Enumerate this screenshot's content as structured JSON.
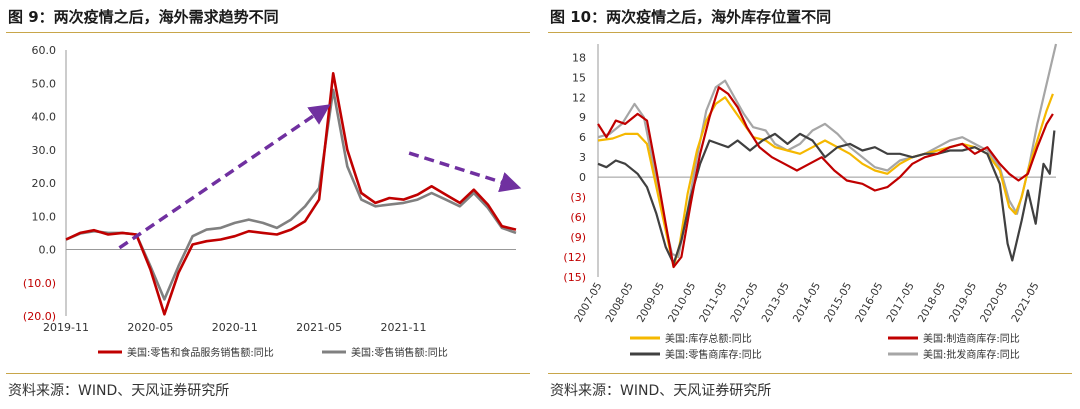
{
  "left": {
    "title": "图 9：两次疫情之后，海外需求趋势不同",
    "source": "资料来源：WIND、天风证券研究所"
  },
  "right": {
    "title": "图 10：两次疫情之后，海外库存位置不同",
    "source": "资料来源：WIND、天风证券研究所"
  },
  "chart_data": [
    {
      "type": "line",
      "title": "图 9：两次疫情之后，海外需求趋势不同",
      "xlabel": "",
      "ylabel": "",
      "x_ticks": [
        "2019-11",
        "2020-05",
        "2020-11",
        "2021-05",
        "2021-11"
      ],
      "x_tick_indices": [
        0,
        6,
        12,
        18,
        24
      ],
      "y_ticks": [
        -20,
        -10,
        0,
        10,
        20,
        30,
        40,
        50,
        60
      ],
      "y_tick_labels": [
        "(20.0)",
        "(10.0)",
        "0.0",
        "10.0",
        "20.0",
        "30.0",
        "40.0",
        "50.0",
        "60.0"
      ],
      "ylim": [
        -20,
        60
      ],
      "x_count": 33,
      "series": [
        {
          "name": "美国:零售和食品服务销售额:同比",
          "color": "#c00000",
          "values": [
            3.0,
            5.0,
            5.8,
            4.5,
            5.0,
            4.5,
            -6.0,
            -19.5,
            -7.0,
            1.5,
            2.5,
            3.0,
            4.0,
            5.5,
            5.0,
            4.5,
            6.0,
            8.5,
            15.0,
            53.0,
            30.0,
            17.0,
            14.0,
            15.5,
            15.0,
            16.5,
            19.0,
            16.5,
            14.0,
            18.0,
            13.5,
            7.0,
            6.0
          ]
        },
        {
          "name": "美国:零售销售额:同比",
          "color": "#808080",
          "values": [
            3.0,
            4.8,
            5.5,
            5.0,
            5.0,
            4.5,
            -5.0,
            -15.0,
            -5.0,
            4.0,
            6.0,
            6.5,
            8.0,
            9.0,
            8.0,
            6.5,
            9.0,
            13.0,
            18.5,
            48.0,
            25.0,
            15.0,
            13.0,
            13.5,
            14.0,
            15.0,
            17.0,
            15.0,
            13.0,
            17.0,
            12.5,
            6.5,
            5.0
          ]
        }
      ],
      "arrows": [
        {
          "from_x": 3.8,
          "from_y": 0.5,
          "to_x": 18.4,
          "to_y": 42.5,
          "color": "#7030a0"
        },
        {
          "from_x": 24.4,
          "from_y": 29.0,
          "to_x": 31.9,
          "to_y": 19.0,
          "color": "#7030a0"
        }
      ]
    },
    {
      "type": "line",
      "title": "图 10：两次疫情之后，海外库存位置不同",
      "xlabel": "",
      "ylabel": "",
      "x_ticks": [
        "2007-05",
        "2008-05",
        "2009-05",
        "2010-05",
        "2011-05",
        "2012-05",
        "2013-05",
        "2014-05",
        "2015-05",
        "2016-05",
        "2017-05",
        "2018-05",
        "2019-05",
        "2020-05",
        "2021-05"
      ],
      "x_start_year": 2007.33,
      "x_end_year": 2022.0,
      "y_ticks": [
        -15,
        -12,
        -9,
        -6,
        -3,
        0,
        3,
        6,
        9,
        12,
        15,
        18
      ],
      "y_tick_labels": [
        "(15)",
        "(12)",
        "(9)",
        "(6)",
        "(3)",
        "0",
        "3",
        "6",
        "9",
        "12",
        "15",
        "18"
      ],
      "y_negative_color": "#c00000",
      "ylim": [
        -15,
        20
      ],
      "series": [
        {
          "name": "美国:库存总额:同比",
          "color": "#f5b800",
          "points": [
            [
              2007.33,
              5.5
            ],
            [
              2007.8,
              5.8
            ],
            [
              2008.2,
              6.5
            ],
            [
              2008.6,
              6.5
            ],
            [
              2008.9,
              5.0
            ],
            [
              2009.2,
              -1.5
            ],
            [
              2009.5,
              -8.0
            ],
            [
              2009.75,
              -13.5
            ],
            [
              2009.95,
              -10.0
            ],
            [
              2010.2,
              -2.5
            ],
            [
              2010.5,
              4.0
            ],
            [
              2010.8,
              8.5
            ],
            [
              2011.1,
              11.0
            ],
            [
              2011.4,
              12.0
            ],
            [
              2011.7,
              10.0
            ],
            [
              2012.0,
              8.0
            ],
            [
              2012.3,
              6.0
            ],
            [
              2012.7,
              5.5
            ],
            [
              2013.0,
              4.5
            ],
            [
              2013.4,
              4.0
            ],
            [
              2013.8,
              3.5
            ],
            [
              2014.2,
              4.5
            ],
            [
              2014.6,
              5.5
            ],
            [
              2015.0,
              4.5
            ],
            [
              2015.4,
              3.5
            ],
            [
              2015.8,
              2.0
            ],
            [
              2016.2,
              1.0
            ],
            [
              2016.6,
              0.5
            ],
            [
              2017.0,
              2.0
            ],
            [
              2017.4,
              3.0
            ],
            [
              2017.8,
              3.5
            ],
            [
              2018.2,
              4.0
            ],
            [
              2018.6,
              4.5
            ],
            [
              2019.0,
              5.0
            ],
            [
              2019.4,
              4.5
            ],
            [
              2019.8,
              3.5
            ],
            [
              2020.2,
              1.0
            ],
            [
              2020.5,
              -4.5
            ],
            [
              2020.7,
              -5.5
            ],
            [
              2020.9,
              -3.0
            ],
            [
              2021.1,
              1.0
            ],
            [
              2021.4,
              5.5
            ],
            [
              2021.7,
              10.0
            ],
            [
              2021.9,
              12.5
            ]
          ]
        },
        {
          "name": "美国:制造商库存:同比",
          "color": "#c00000",
          "points": [
            [
              2007.33,
              8.0
            ],
            [
              2007.6,
              6.0
            ],
            [
              2007.9,
              8.5
            ],
            [
              2008.2,
              8.0
            ],
            [
              2008.6,
              9.5
            ],
            [
              2008.9,
              8.5
            ],
            [
              2009.2,
              1.0
            ],
            [
              2009.5,
              -7.0
            ],
            [
              2009.75,
              -13.5
            ],
            [
              2010.0,
              -12.0
            ],
            [
              2010.3,
              -4.0
            ],
            [
              2010.6,
              3.5
            ],
            [
              2010.9,
              9.0
            ],
            [
              2011.2,
              13.5
            ],
            [
              2011.5,
              12.5
            ],
            [
              2011.8,
              10.5
            ],
            [
              2012.1,
              7.5
            ],
            [
              2012.5,
              4.5
            ],
            [
              2012.9,
              3.0
            ],
            [
              2013.3,
              2.0
            ],
            [
              2013.7,
              1.0
            ],
            [
              2014.1,
              2.0
            ],
            [
              2014.5,
              3.0
            ],
            [
              2014.9,
              1.0
            ],
            [
              2015.3,
              -0.5
            ],
            [
              2015.8,
              -1.0
            ],
            [
              2016.2,
              -2.0
            ],
            [
              2016.6,
              -1.5
            ],
            [
              2017.0,
              0.0
            ],
            [
              2017.4,
              2.0
            ],
            [
              2017.8,
              3.0
            ],
            [
              2018.2,
              3.5
            ],
            [
              2018.6,
              4.5
            ],
            [
              2019.0,
              5.0
            ],
            [
              2019.4,
              3.5
            ],
            [
              2019.8,
              4.5
            ],
            [
              2020.2,
              2.0
            ],
            [
              2020.5,
              0.5
            ],
            [
              2020.8,
              -0.5
            ],
            [
              2021.1,
              0.5
            ],
            [
              2021.4,
              4.5
            ],
            [
              2021.7,
              8.0
            ],
            [
              2021.9,
              9.5
            ]
          ]
        },
        {
          "name": "美国:零售商库存:同比",
          "color": "#404040",
          "points": [
            [
              2007.33,
              2.0
            ],
            [
              2007.6,
              1.5
            ],
            [
              2007.9,
              2.5
            ],
            [
              2008.2,
              2.0
            ],
            [
              2008.6,
              0.5
            ],
            [
              2008.9,
              -1.5
            ],
            [
              2009.2,
              -5.5
            ],
            [
              2009.5,
              -10.5
            ],
            [
              2009.75,
              -13.0
            ],
            [
              2010.0,
              -9.5
            ],
            [
              2010.3,
              -3.0
            ],
            [
              2010.6,
              2.0
            ],
            [
              2010.9,
              5.5
            ],
            [
              2011.2,
              5.0
            ],
            [
              2011.5,
              4.5
            ],
            [
              2011.8,
              5.5
            ],
            [
              2012.2,
              4.0
            ],
            [
              2012.6,
              5.5
            ],
            [
              2013.0,
              6.5
            ],
            [
              2013.4,
              5.0
            ],
            [
              2013.8,
              6.5
            ],
            [
              2014.2,
              5.5
            ],
            [
              2014.6,
              3.0
            ],
            [
              2015.0,
              4.5
            ],
            [
              2015.4,
              5.0
            ],
            [
              2015.8,
              4.0
            ],
            [
              2016.2,
              4.5
            ],
            [
              2016.6,
              3.5
            ],
            [
              2017.0,
              3.5
            ],
            [
              2017.4,
              3.0
            ],
            [
              2017.8,
              3.5
            ],
            [
              2018.2,
              3.5
            ],
            [
              2018.6,
              4.0
            ],
            [
              2019.0,
              4.0
            ],
            [
              2019.4,
              4.5
            ],
            [
              2019.8,
              3.5
            ],
            [
              2020.2,
              -1.0
            ],
            [
              2020.45,
              -10.0
            ],
            [
              2020.6,
              -12.5
            ],
            [
              2020.9,
              -6.5
            ],
            [
              2021.1,
              -2.0
            ],
            [
              2021.35,
              -7.0
            ],
            [
              2021.6,
              2.0
            ],
            [
              2021.8,
              0.5
            ],
            [
              2021.95,
              7.0
            ]
          ]
        },
        {
          "name": "美国:批发商库存:同比",
          "color": "#a6a6a6",
          "points": [
            [
              2007.33,
              6.0
            ],
            [
              2007.7,
              6.5
            ],
            [
              2008.1,
              8.0
            ],
            [
              2008.5,
              11.0
            ],
            [
              2008.8,
              9.0
            ],
            [
              2009.1,
              2.0
            ],
            [
              2009.4,
              -5.5
            ],
            [
              2009.7,
              -11.5
            ],
            [
              2009.9,
              -12.0
            ],
            [
              2010.2,
              -5.0
            ],
            [
              2010.5,
              3.0
            ],
            [
              2010.8,
              10.0
            ],
            [
              2011.1,
              13.5
            ],
            [
              2011.4,
              14.5
            ],
            [
              2011.7,
              12.0
            ],
            [
              2012.0,
              9.5
            ],
            [
              2012.3,
              7.5
            ],
            [
              2012.7,
              7.0
            ],
            [
              2013.0,
              5.0
            ],
            [
              2013.4,
              4.0
            ],
            [
              2013.8,
              5.0
            ],
            [
              2014.2,
              7.0
            ],
            [
              2014.6,
              8.0
            ],
            [
              2015.0,
              6.5
            ],
            [
              2015.4,
              4.5
            ],
            [
              2015.8,
              3.0
            ],
            [
              2016.2,
              1.5
            ],
            [
              2016.6,
              1.0
            ],
            [
              2017.0,
              2.5
            ],
            [
              2017.4,
              3.0
            ],
            [
              2017.8,
              3.5
            ],
            [
              2018.2,
              4.5
            ],
            [
              2018.6,
              5.5
            ],
            [
              2019.0,
              6.0
            ],
            [
              2019.4,
              5.0
            ],
            [
              2019.8,
              4.0
            ],
            [
              2020.2,
              1.5
            ],
            [
              2020.5,
              -3.5
            ],
            [
              2020.75,
              -5.5
            ],
            [
              2020.95,
              -2.0
            ],
            [
              2021.15,
              2.0
            ],
            [
              2021.4,
              8.0
            ],
            [
              2021.6,
              12.0
            ],
            [
              2021.85,
              17.0
            ],
            [
              2022.0,
              20.0
            ]
          ]
        }
      ]
    }
  ]
}
